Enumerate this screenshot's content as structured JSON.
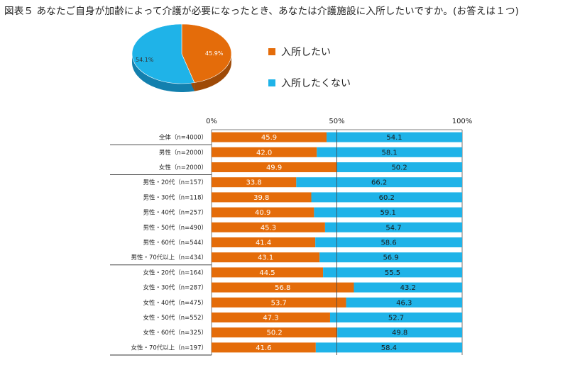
{
  "title": "図表５ あなたご自身が加齢によって介護が必要になったとき、あなたは介護施設に入所したいですか。(お答えは１つ)",
  "colors": {
    "yes": "#E46C0A",
    "no": "#1FB3E8",
    "yes_dark": "#9E4A07",
    "no_dark": "#1380AE"
  },
  "legend": [
    {
      "label": "入所したい",
      "color": "#E46C0A"
    },
    {
      "label": "入所したくない",
      "color": "#1FB3E8"
    }
  ],
  "chart_data": [
    {
      "type": "pie",
      "title": "",
      "slices": [
        {
          "label": "入所したい",
          "value": 45.9,
          "text": "45.9%"
        },
        {
          "label": "入所したくない",
          "value": 54.1,
          "text": "54.1%"
        }
      ]
    },
    {
      "type": "bar",
      "orientation": "horizontal",
      "stacked": "100%",
      "title": "",
      "xticks": [
        "0%",
        "50%",
        "100%"
      ],
      "xlim": [
        0,
        100
      ],
      "categories": [
        "全体（n=4000）",
        "男性（n=2000）",
        "女性（n=2000）",
        "男性・20代（n=157）",
        "男性・30代（n=118）",
        "男性・40代（n=257）",
        "男性・50代（n=490）",
        "男性・60代（n=544）",
        "男性・70代以上（n=434）",
        "女性・20代（n=164）",
        "女性・30代（n=287）",
        "女性・40代（n=475）",
        "女性・50代（n=552）",
        "女性・60代（n=325）",
        "女性・70代以上（n=197）"
      ],
      "series": [
        {
          "name": "入所したい",
          "values": [
            45.9,
            42.0,
            49.9,
            33.8,
            39.8,
            40.9,
            45.3,
            41.4,
            43.1,
            44.5,
            56.8,
            53.7,
            47.3,
            50.2,
            41.6
          ],
          "labels": [
            "45.9",
            "42.0",
            "49.9",
            "33.8",
            "39.8",
            "40.9",
            "45.3",
            "41.4",
            "43.1",
            "44.5",
            "56.8",
            "53.7",
            "47.3",
            "50.2",
            "41.6"
          ]
        },
        {
          "name": "入所したくない",
          "values": [
            54.1,
            58.1,
            50.2,
            66.2,
            60.2,
            59.1,
            54.7,
            58.6,
            56.9,
            55.5,
            43.2,
            46.3,
            52.7,
            49.8,
            58.4
          ],
          "labels": [
            "54.1",
            "58.1",
            "50.2",
            "66.2",
            "60.2",
            "59.1",
            "54.7",
            "58.6",
            "56.9",
            "55.5",
            "43.2",
            "46.3",
            "52.7",
            "49.8",
            "58.4"
          ]
        }
      ]
    }
  ]
}
